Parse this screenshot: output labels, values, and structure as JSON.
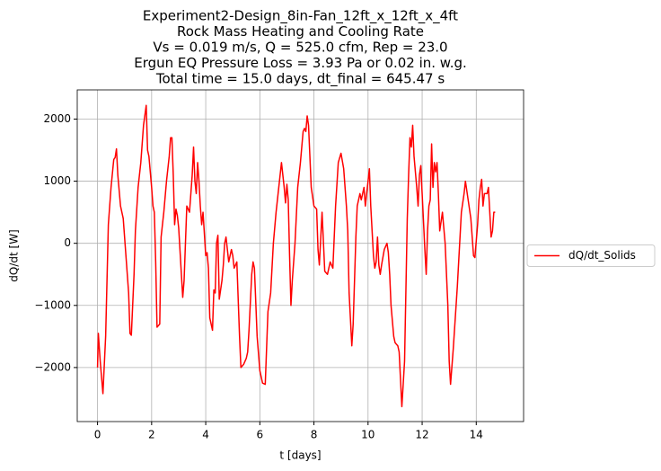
{
  "chart_data": {
    "type": "line",
    "title": [
      "Experiment2-Design_8in-Fan_12ft_x_12ft_x_4ft",
      "Rock Mass Heating and Cooling Rate",
      "Vs = 0.019 m/s, Q = 525.0 cfm, Rep = 23.0",
      "Ergun EQ Pressure Loss = 3.93 Pa or 0.02 in. w.g.",
      "Total time = 15.0 days, dt_final = 645.47 s"
    ],
    "xlabel": "t [days]",
    "ylabel": "dQ/dt [W]",
    "xlim": [
      -0.75,
      15.75
    ],
    "ylim": [
      -2870,
      2470
    ],
    "xticks": [
      0,
      2,
      4,
      6,
      8,
      10,
      12,
      14
    ],
    "yticks": [
      {
        "value": -2000,
        "label": "−2000"
      },
      {
        "value": -1000,
        "label": "−1000"
      },
      0,
      1000,
      2000
    ],
    "grid": true,
    "legend": "outside right",
    "x": [
      0.0,
      0.03,
      0.1,
      0.2,
      0.3,
      0.4,
      0.5,
      0.6,
      0.65,
      0.7,
      0.75,
      0.85,
      0.95,
      1.05,
      1.15,
      1.2,
      1.25,
      1.35,
      1.4,
      1.5,
      1.6,
      1.7,
      1.8,
      1.85,
      1.9,
      2.0,
      2.05,
      2.1,
      2.15,
      2.2,
      2.3,
      2.35,
      2.45,
      2.55,
      2.65,
      2.7,
      2.75,
      2.8,
      2.85,
      2.9,
      2.95,
      3.0,
      3.1,
      3.15,
      3.2,
      3.3,
      3.4,
      3.5,
      3.55,
      3.6,
      3.65,
      3.7,
      3.75,
      3.8,
      3.85,
      3.9,
      4.0,
      4.05,
      4.1,
      4.15,
      4.25,
      4.3,
      4.35,
      4.4,
      4.45,
      4.5,
      4.6,
      4.65,
      4.7,
      4.75,
      4.85,
      4.95,
      5.0,
      5.05,
      5.15,
      5.25,
      5.3,
      5.4,
      5.5,
      5.55,
      5.6,
      5.7,
      5.75,
      5.8,
      5.9,
      6.0,
      6.1,
      6.2,
      6.3,
      6.4,
      6.5,
      6.6,
      6.7,
      6.8,
      6.9,
      6.95,
      7.0,
      7.05,
      7.1,
      7.15,
      7.2,
      7.3,
      7.4,
      7.5,
      7.6,
      7.65,
      7.7,
      7.75,
      7.8,
      7.9,
      8.0,
      8.1,
      8.15,
      8.2,
      8.3,
      8.4,
      8.5,
      8.6,
      8.7,
      8.8,
      8.9,
      9.0,
      9.1,
      9.2,
      9.25,
      9.3,
      9.4,
      9.45,
      9.55,
      9.6,
      9.7,
      9.75,
      9.85,
      9.9,
      10.0,
      10.05,
      10.1,
      10.2,
      10.25,
      10.3,
      10.35,
      10.4,
      10.45,
      10.5,
      10.6,
      10.7,
      10.75,
      10.8,
      10.85,
      10.95,
      11.0,
      11.1,
      11.15,
      11.25,
      11.35,
      11.45,
      11.5,
      11.55,
      11.6,
      11.65,
      11.7,
      11.8,
      11.85,
      11.9,
      11.95,
      12.0,
      12.1,
      12.15,
      12.2,
      12.25,
      12.3,
      12.35,
      12.4,
      12.45,
      12.5,
      12.55,
      12.6,
      12.65,
      12.75,
      12.85,
      12.95,
      13.0,
      13.05,
      13.15,
      13.3,
      13.45,
      13.55,
      13.6,
      13.7,
      13.8,
      13.85,
      13.9,
      13.95,
      14.05,
      14.1,
      14.15,
      14.2,
      14.25,
      14.3,
      14.4,
      14.45,
      14.5,
      14.55,
      14.6,
      14.65,
      14.7
    ],
    "series": [
      {
        "name": "dQ/dt_Solids",
        "color": "#ff0000",
        "values": [
          -2000,
          -1450,
          -1900,
          -2420,
          -1500,
          300,
          900,
          1350,
          1380,
          1520,
          1100,
          600,
          400,
          -200,
          -800,
          -1450,
          -1480,
          -500,
          200,
          900,
          1300,
          1900,
          2220,
          1500,
          1400,
          900,
          600,
          500,
          -300,
          -1350,
          -1300,
          100,
          500,
          1000,
          1400,
          1700,
          1700,
          1100,
          300,
          550,
          450,
          250,
          -500,
          -870,
          -600,
          600,
          500,
          1100,
          1550,
          1000,
          800,
          1300,
          1000,
          600,
          300,
          500,
          -200,
          -150,
          -400,
          -1200,
          -1400,
          -750,
          -800,
          0,
          130,
          -900,
          -600,
          -350,
          0,
          100,
          -300,
          -100,
          -200,
          -400,
          -300,
          -1500,
          -2000,
          -1950,
          -1850,
          -1750,
          -1400,
          -500,
          -300,
          -400,
          -1500,
          -2050,
          -2250,
          -2270,
          -1100,
          -800,
          0,
          500,
          900,
          1300,
          900,
          650,
          950,
          700,
          -200,
          -1000,
          -600,
          0,
          900,
          1300,
          1800,
          1850,
          1800,
          2050,
          1900,
          900,
          600,
          550,
          -100,
          -350,
          500,
          -450,
          -500,
          -300,
          -400,
          600,
          1300,
          1450,
          1200,
          600,
          200,
          -800,
          -1650,
          -1300,
          100,
          600,
          800,
          700,
          900,
          600,
          1000,
          1200,
          600,
          -200,
          -400,
          -300,
          100,
          -350,
          -500,
          -350,
          -100,
          0,
          -150,
          -500,
          -1000,
          -1500,
          -1600,
          -1650,
          -1750,
          -2630,
          -1900,
          400,
          1100,
          1700,
          1550,
          1900,
          1400,
          900,
          600,
          1100,
          1250,
          800,
          -100,
          -500,
          200,
          600,
          700,
          1600,
          900,
          1300,
          1150,
          1300,
          800,
          200,
          500,
          0,
          -1000,
          -1900,
          -2270,
          -1700,
          -700,
          500,
          800,
          1000,
          700,
          400,
          100,
          -200,
          -230,
          300,
          700,
          900,
          1030,
          600,
          800,
          800,
          900,
          500,
          100,
          200,
          500,
          500
        ]
      }
    ]
  }
}
